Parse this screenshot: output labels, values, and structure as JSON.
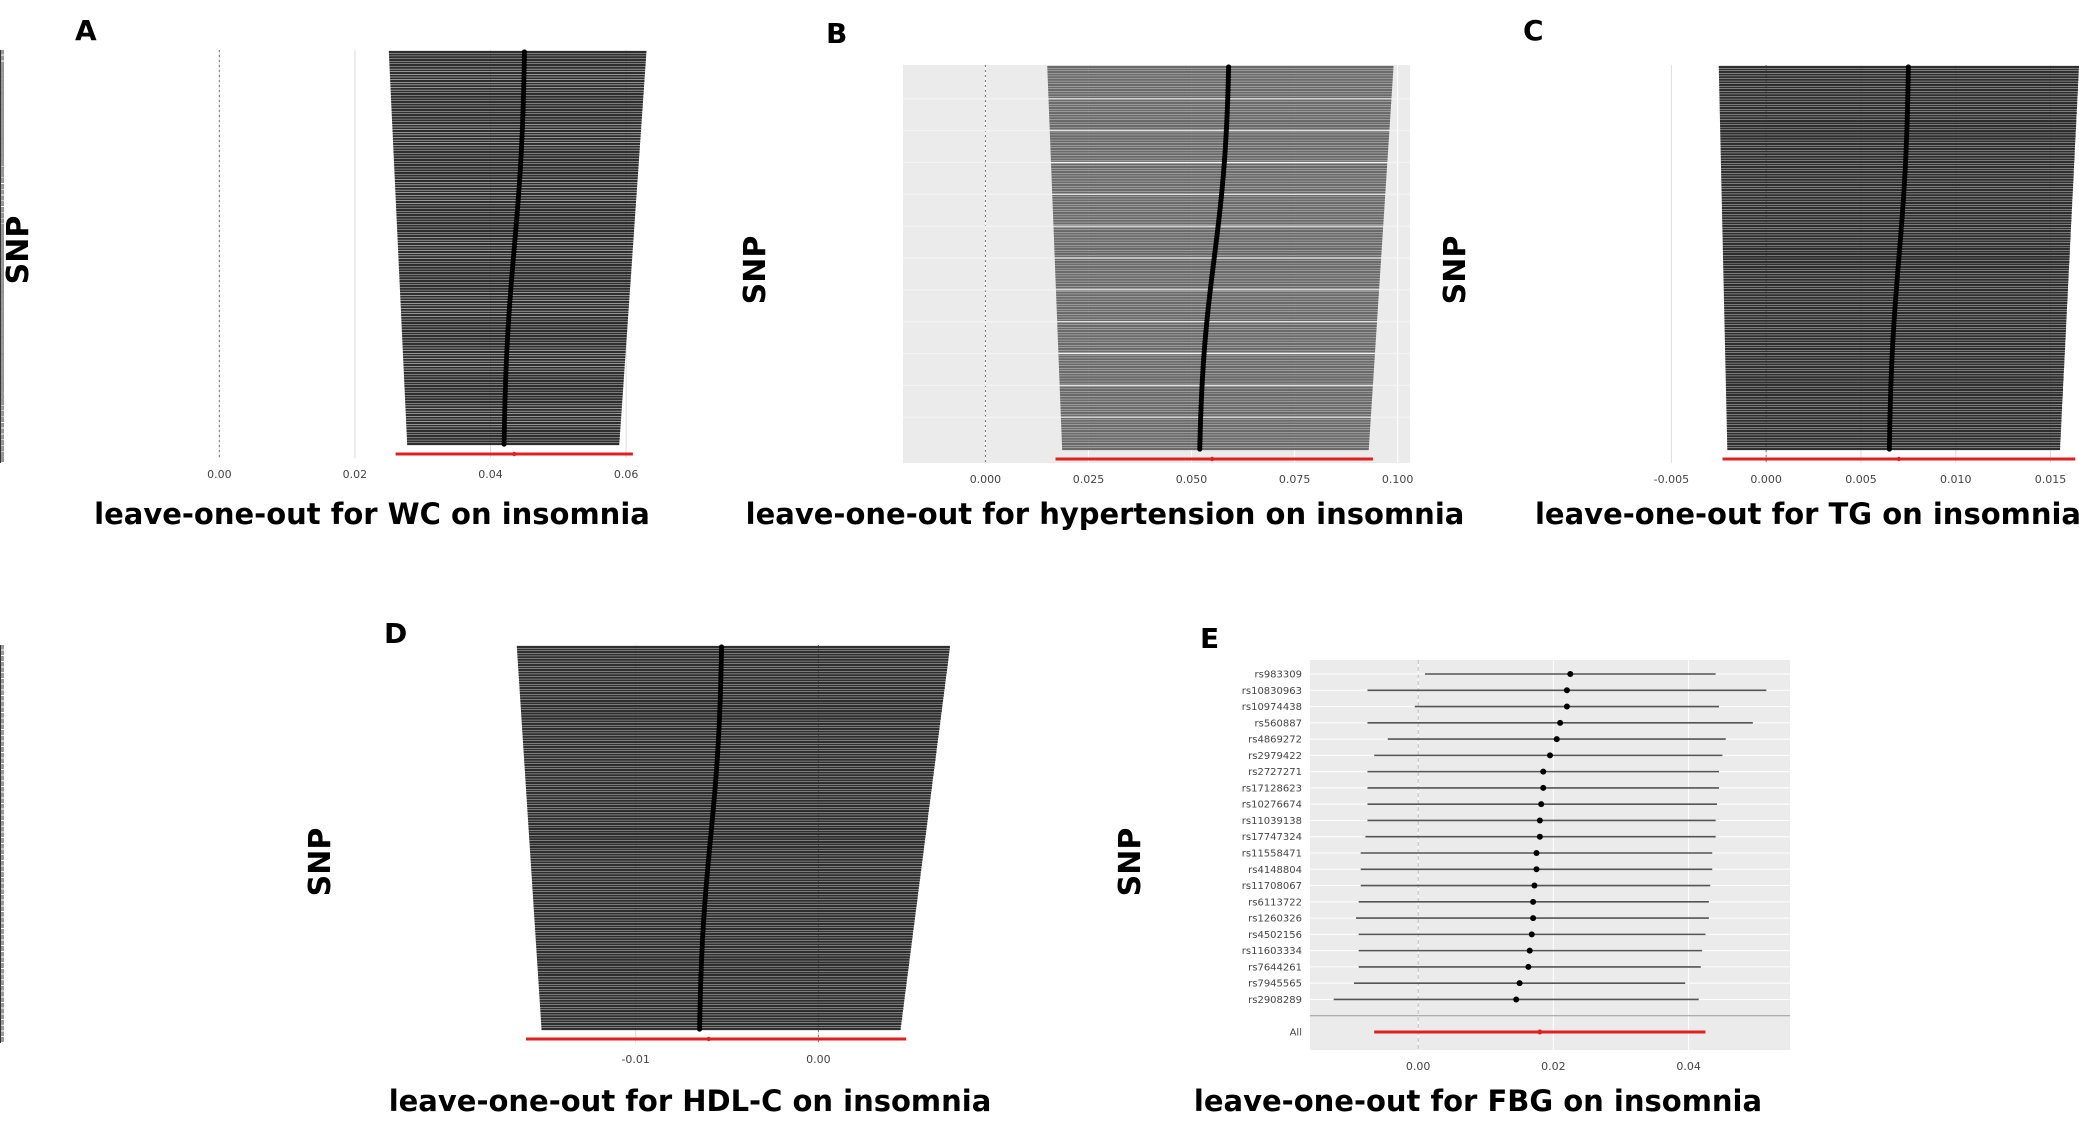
{
  "figure": {
    "panels": [
      {
        "letter": "A",
        "caption": "leave-one-out for WC on insomnia",
        "ylabel": "SNP"
      },
      {
        "letter": "B",
        "caption": "leave-one-out for hypertension on insomnia",
        "ylabel": "SNP"
      },
      {
        "letter": "C",
        "caption": "leave-one-out for TG on insomnia",
        "ylabel": "SNP"
      },
      {
        "letter": "D",
        "caption": "leave-one-out for HDL-C on insomnia",
        "ylabel": "SNP"
      },
      {
        "letter": "E",
        "caption": "leave-one-out for FBG on insomnia",
        "ylabel": "SNP"
      }
    ]
  },
  "chart_data": [
    {
      "type": "scatter",
      "subtype": "leave-one-out forest plot (dense)",
      "title": "leave-one-out for WC on insomnia",
      "ylabel": "SNP",
      "xlim": [
        -0.012,
        0.065
      ],
      "xticks": [
        0.0,
        0.02,
        0.04,
        0.06
      ],
      "xtick_labels": [
        "0.00",
        "0.02",
        "0.04",
        "0.06"
      ],
      "n_rows": 150,
      "estimate_range": [
        0.042,
        0.045
      ],
      "ci_lower_range": [
        0.025,
        0.028
      ],
      "ci_upper_range": [
        0.059,
        0.063
      ],
      "all_row": {
        "estimate": 0.0435,
        "lower": 0.026,
        "upper": 0.061
      },
      "grid": true
    },
    {
      "type": "scatter",
      "subtype": "leave-one-out forest plot (dense)",
      "title": "leave-one-out for hypertension on insomnia",
      "ylabel": "SNP",
      "xlim": [
        -0.02,
        0.103
      ],
      "xticks": [
        0.0,
        0.025,
        0.05,
        0.075,
        0.1
      ],
      "xtick_labels": [
        "0.000",
        "0.025",
        "0.050",
        "0.075",
        "0.100"
      ],
      "n_rows": 150,
      "estimate_range": [
        0.052,
        0.059
      ],
      "ci_lower_range": [
        0.015,
        0.019
      ],
      "ci_upper_range": [
        0.093,
        0.099
      ],
      "all_row": {
        "estimate": 0.055,
        "lower": 0.017,
        "upper": 0.094
      },
      "grid": true
    },
    {
      "type": "scatter",
      "subtype": "leave-one-out forest plot (dense)",
      "title": "leave-one-out for TG on insomnia",
      "ylabel": "SNP",
      "xlim": [
        -0.0085,
        0.0165
      ],
      "xticks": [
        -0.005,
        0.0,
        0.005,
        0.01,
        0.015
      ],
      "xtick_labels": [
        "-0.005",
        "0.000",
        "0.005",
        "0.010",
        "0.015"
      ],
      "n_rows": 150,
      "estimate_range": [
        0.0065,
        0.0075
      ],
      "ci_lower_range": [
        -0.0025,
        -0.002
      ],
      "ci_upper_range": [
        0.0155,
        0.0165
      ],
      "all_row": {
        "estimate": 0.007,
        "lower": -0.0023,
        "upper": 0.0163
      },
      "grid": true
    },
    {
      "type": "scatter",
      "subtype": "leave-one-out forest plot (dense)",
      "title": "leave-one-out for HDL-C on insomnia",
      "ylabel": "SNP",
      "xlim": [
        -0.0195,
        0.0072
      ],
      "xticks": [
        -0.01,
        0.0
      ],
      "xtick_labels": [
        "-0.01",
        "0.00"
      ],
      "n_rows": 150,
      "estimate_range": [
        -0.0065,
        -0.0053
      ],
      "ci_lower_range": [
        -0.0165,
        -0.015
      ],
      "ci_upper_range": [
        0.0045,
        0.0072
      ],
      "all_row": {
        "estimate": -0.006,
        "lower": -0.016,
        "upper": 0.0048
      },
      "grid": true
    },
    {
      "type": "scatter",
      "subtype": "leave-one-out forest plot",
      "title": "leave-one-out for FBG on insomnia",
      "ylabel": "SNP",
      "xlim": [
        -0.016,
        0.055
      ],
      "xticks": [
        0.0,
        0.02,
        0.04
      ],
      "xtick_labels": [
        "0.00",
        "0.02",
        "0.04"
      ],
      "rows": [
        {
          "snp": "rs983309",
          "estimate": 0.0225,
          "lower": 0.001,
          "upper": 0.044
        },
        {
          "snp": "rs10830963",
          "estimate": 0.022,
          "lower": -0.0075,
          "upper": 0.0515
        },
        {
          "snp": "rs10974438",
          "estimate": 0.022,
          "lower": -0.0005,
          "upper": 0.0445
        },
        {
          "snp": "rs560887",
          "estimate": 0.021,
          "lower": -0.0075,
          "upper": 0.0495
        },
        {
          "snp": "rs4869272",
          "estimate": 0.0205,
          "lower": -0.0045,
          "upper": 0.0455
        },
        {
          "snp": "rs2979422",
          "estimate": 0.0195,
          "lower": -0.0065,
          "upper": 0.045
        },
        {
          "snp": "rs2727271",
          "estimate": 0.0185,
          "lower": -0.0075,
          "upper": 0.0445
        },
        {
          "snp": "rs17128623",
          "estimate": 0.0185,
          "lower": -0.0075,
          "upper": 0.0445
        },
        {
          "snp": "rs10276674",
          "estimate": 0.0182,
          "lower": -0.0075,
          "upper": 0.0442
        },
        {
          "snp": "rs11039138",
          "estimate": 0.018,
          "lower": -0.0075,
          "upper": 0.044
        },
        {
          "snp": "rs17747324",
          "estimate": 0.018,
          "lower": -0.0078,
          "upper": 0.044
        },
        {
          "snp": "rs11558471",
          "estimate": 0.0175,
          "lower": -0.0085,
          "upper": 0.0435
        },
        {
          "snp": "rs4148804",
          "estimate": 0.0175,
          "lower": -0.0085,
          "upper": 0.0435
        },
        {
          "snp": "rs11708067",
          "estimate": 0.0172,
          "lower": -0.0085,
          "upper": 0.0432
        },
        {
          "snp": "rs6113722",
          "estimate": 0.017,
          "lower": -0.0088,
          "upper": 0.043
        },
        {
          "snp": "rs1260326",
          "estimate": 0.017,
          "lower": -0.0092,
          "upper": 0.043
        },
        {
          "snp": "rs4502156",
          "estimate": 0.0168,
          "lower": -0.0088,
          "upper": 0.0425
        },
        {
          "snp": "rs11603334",
          "estimate": 0.0165,
          "lower": -0.0088,
          "upper": 0.042
        },
        {
          "snp": "rs7644261",
          "estimate": 0.0163,
          "lower": -0.0088,
          "upper": 0.0418
        },
        {
          "snp": "rs7945565",
          "estimate": 0.015,
          "lower": -0.0095,
          "upper": 0.0395
        },
        {
          "snp": "rs2908289",
          "estimate": 0.0145,
          "lower": -0.0125,
          "upper": 0.0415
        }
      ],
      "all_row": {
        "label": "All",
        "estimate": 0.018,
        "lower": -0.0065,
        "upper": 0.0425
      },
      "grid": true
    }
  ]
}
